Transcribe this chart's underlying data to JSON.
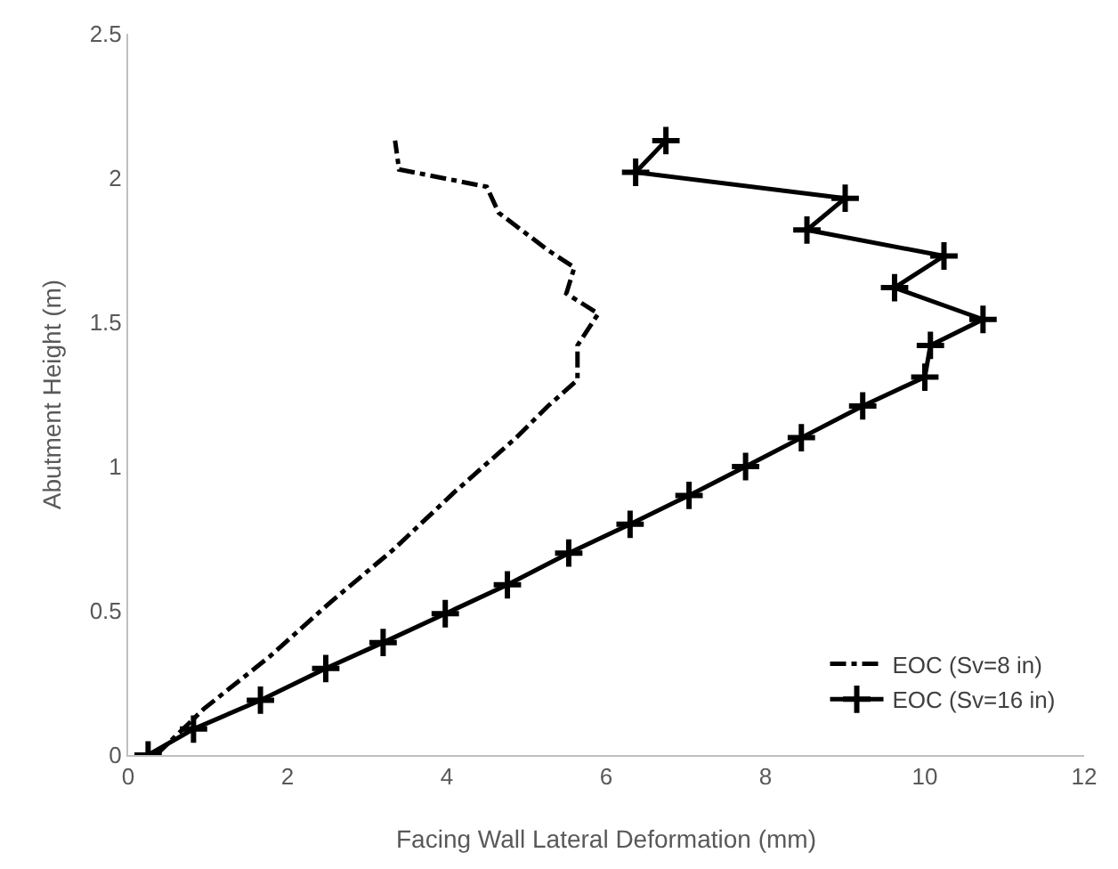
{
  "chart_data": {
    "type": "line",
    "xlabel": "Facing Wall Lateral Deformation (mm)",
    "ylabel": "Abutment Height (m)",
    "xlim": [
      0,
      12
    ],
    "xticks": [
      0,
      2,
      4,
      6,
      8,
      10,
      12
    ],
    "ylim": [
      0,
      2.5
    ],
    "yticks": [
      0,
      0.5,
      1,
      1.5,
      2,
      2.5
    ],
    "grid": false,
    "legend": "bottom right",
    "series": [
      {
        "name": "EOC (Sv=8 in)",
        "color": "#000000",
        "line_style": "dashdot",
        "marker": "none",
        "x": [
          0.35,
          0.95,
          1.77,
          2.54,
          3.32,
          4.09,
          4.87,
          5.27,
          5.64,
          5.64,
          5.9,
          5.5,
          5.6,
          5.27,
          4.65,
          4.5,
          3.4,
          3.35
        ],
        "values": [
          0,
          0.16,
          0.34,
          0.53,
          0.71,
          0.91,
          1.1,
          1.21,
          1.3,
          1.42,
          1.53,
          1.6,
          1.69,
          1.75,
          1.88,
          1.97,
          2.03,
          2.13
        ]
      },
      {
        "name": "EOC (Sv=16 in)",
        "color": "#000000",
        "line_style": "solid",
        "marker": "cross",
        "x": [
          0.25,
          0.82,
          1.66,
          2.48,
          3.2,
          3.98,
          4.76,
          5.53,
          6.3,
          7.04,
          7.75,
          8.45,
          9.22,
          10.0,
          10.07,
          10.73,
          9.62,
          10.24,
          8.52,
          9.0,
          6.37,
          6.75
        ],
        "values": [
          0,
          0.09,
          0.19,
          0.3,
          0.39,
          0.49,
          0.59,
          0.7,
          0.8,
          0.9,
          1.0,
          1.1,
          1.21,
          1.31,
          1.42,
          1.51,
          1.62,
          1.73,
          1.82,
          1.93,
          2.02,
          2.13
        ]
      }
    ]
  }
}
